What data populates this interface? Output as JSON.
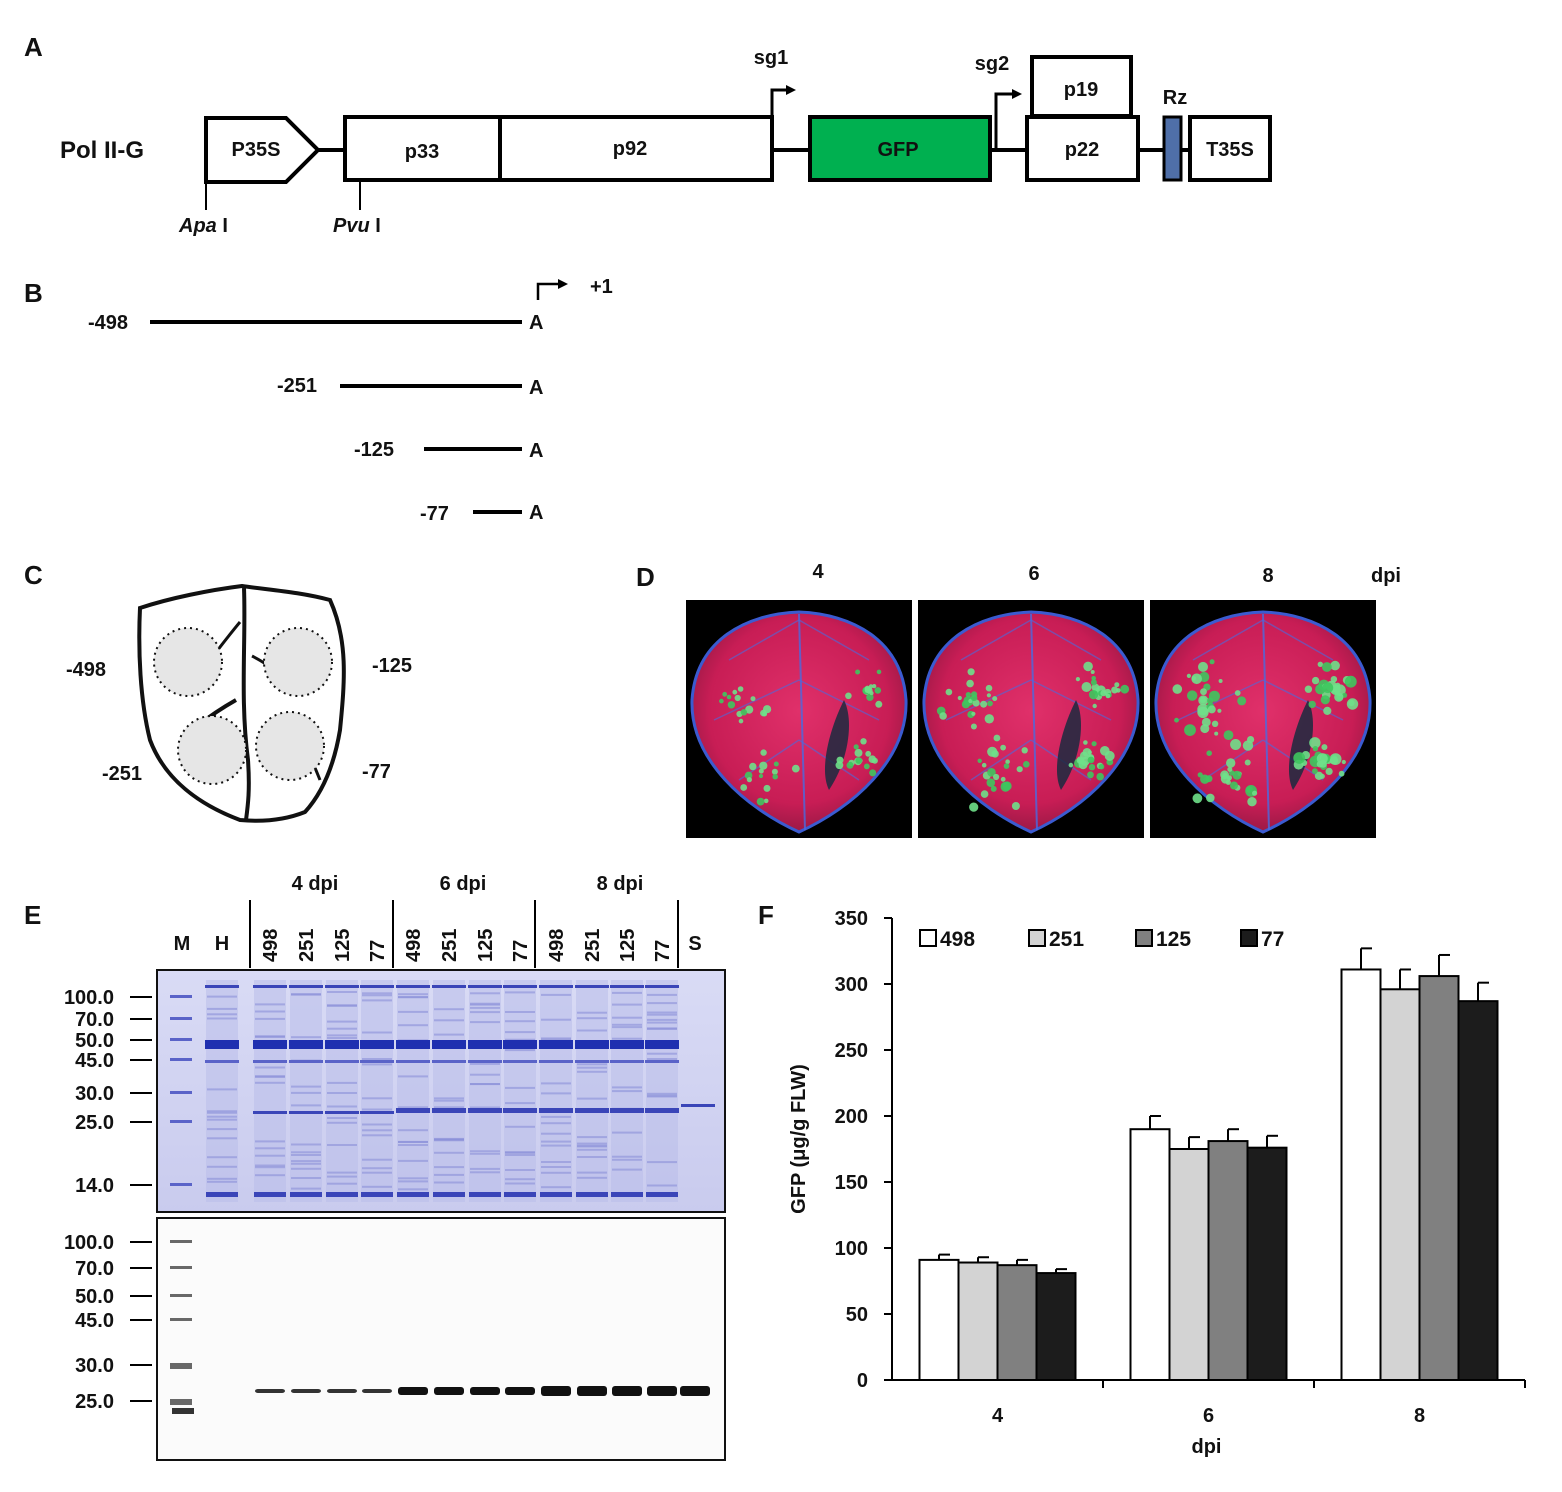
{
  "panel_letters": [
    "A",
    "B",
    "C",
    "D",
    "E",
    "F"
  ],
  "panelA": {
    "construct": "Pol II-G",
    "segments": [
      "P35S",
      "p33",
      "p92",
      "GFP",
      "p22",
      "p19",
      "Rz",
      "T35S"
    ],
    "promoters": [
      "sg1",
      "sg2"
    ],
    "sites": [
      {
        "name": "Apa",
        "suffix": " I"
      },
      {
        "name": "Pvu",
        "suffix": " I"
      }
    ],
    "colors": {
      "gfp": "#00b050",
      "rz": "#4f6fa8"
    }
  },
  "panelB": {
    "start": "+1",
    "end_label": "A",
    "deletions": [
      "-498",
      "-251",
      "-125",
      "-77"
    ]
  },
  "panelC": {
    "spots": [
      "-498",
      "-125",
      "-251",
      "-77"
    ]
  },
  "panelD": {
    "timepoints": [
      "4",
      "6",
      "8"
    ],
    "unit": "dpi"
  },
  "panelE": {
    "groups": [
      "4 dpi",
      "6 dpi",
      "8 dpi"
    ],
    "lanes": [
      "M",
      "H",
      "498",
      "251",
      "125",
      "77",
      "498",
      "251",
      "125",
      "77",
      "498",
      "251",
      "125",
      "77",
      "S"
    ],
    "markers_top": [
      "100.0",
      "70.0",
      "50.0",
      "45.0",
      "30.0",
      "25.0",
      "14.0"
    ],
    "markers_bottom": [
      "100.0",
      "70.0",
      "50.0",
      "45.0",
      "30.0",
      "25.0"
    ]
  },
  "chart_data": {
    "type": "bar",
    "categories": [
      "4",
      "6",
      "8"
    ],
    "series": [
      {
        "name": "498",
        "color": "#ffffff",
        "values": [
          91,
          190,
          311
        ],
        "errors": [
          4,
          10,
          16
        ]
      },
      {
        "name": "251",
        "color": "#d3d3d3",
        "values": [
          89,
          175,
          296
        ],
        "errors": [
          4,
          9,
          15
        ]
      },
      {
        "name": "125",
        "color": "#808080",
        "values": [
          87,
          181,
          306
        ],
        "errors": [
          4,
          9,
          16
        ]
      },
      {
        "name": "77",
        "color": "#1c1c1c",
        "values": [
          81,
          176,
          287
        ],
        "errors": [
          3,
          9,
          14
        ]
      }
    ],
    "xlabel": "dpi",
    "ylabel": "GFP (μg/g FLW)",
    "ylim": [
      0,
      350
    ],
    "yticks": [
      "0",
      "50",
      "100",
      "150",
      "200",
      "250",
      "300",
      "350"
    ],
    "legend": "top"
  }
}
